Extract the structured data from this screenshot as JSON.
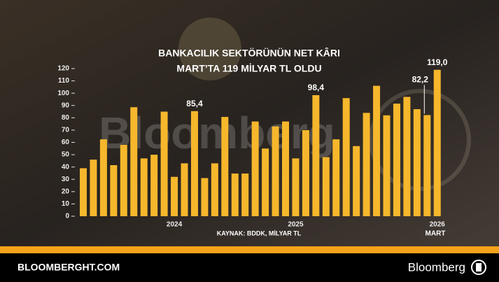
{
  "chart_data": {
    "type": "bar",
    "title": [
      "BANKACILIK SEKTÖRÜNÜN NET KÂRI",
      "MART’TA 119 MİLYAR TL OLDU"
    ],
    "source": "KAYNAK: BDDK, MİLYAR TL",
    "watermark": "Bloomberg",
    "x_annotation": "MART",
    "categories": [
      null,
      null,
      null,
      null,
      null,
      null,
      null,
      null,
      null,
      "2024",
      null,
      null,
      null,
      null,
      null,
      null,
      null,
      null,
      null,
      null,
      null,
      "2025",
      null,
      null,
      null,
      null,
      null,
      null,
      null,
      null,
      null,
      null,
      null,
      null,
      null,
      "2026"
    ],
    "values": [
      39,
      46,
      62.5,
      41.5,
      58,
      88.6,
      47,
      50,
      85,
      32,
      43,
      85.4,
      31,
      43,
      80.7,
      34.7,
      34.7,
      77,
      55,
      73,
      77,
      47,
      70,
      98.4,
      48,
      62.5,
      96,
      57,
      84,
      106,
      82,
      91.5,
      97,
      87,
      82.2,
      119
    ],
    "value_labels": [
      null,
      null,
      null,
      null,
      null,
      null,
      null,
      null,
      null,
      null,
      null,
      "85,4",
      null,
      null,
      null,
      null,
      null,
      null,
      null,
      null,
      null,
      null,
      null,
      "98,4",
      null,
      null,
      null,
      null,
      null,
      null,
      null,
      null,
      null,
      null,
      "82,2",
      "119,0"
    ],
    "color": "#f6b72c",
    "ylim": [
      0,
      120
    ],
    "yticks": [
      0,
      10,
      20,
      30,
      40,
      50,
      60,
      70,
      80,
      90,
      100,
      110,
      120
    ]
  },
  "footer": {
    "site": "BLOOMBERGHT.COM",
    "brand": "Bloomberg"
  }
}
